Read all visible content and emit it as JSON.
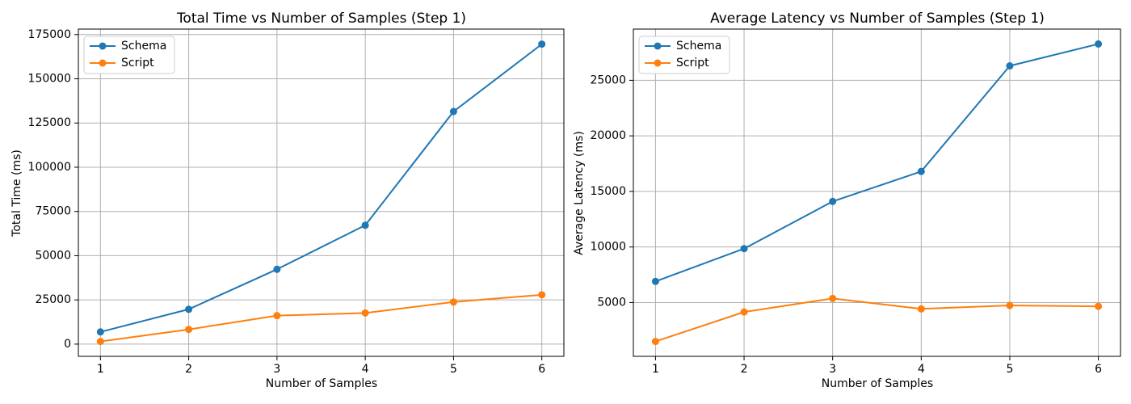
{
  "figure": {
    "background": "#ffffff"
  },
  "style": {
    "grid_color": "#b0b0b0",
    "spine_color": "#000000",
    "text_color": "#000000",
    "legend_border_color": "#cccccc",
    "legend_background": "#ffffff"
  },
  "chart_data": [
    {
      "type": "line",
      "title": "Total Time vs Number of Samples (Step 1)",
      "xlabel": "Number of Samples",
      "ylabel": "Total Time (ms)",
      "x": [
        1,
        2,
        3,
        4,
        5,
        6
      ],
      "xticks": [
        "1",
        "2",
        "3",
        "4",
        "5",
        "6"
      ],
      "yticks": [
        0,
        25000,
        50000,
        75000,
        100000,
        125000,
        150000,
        175000
      ],
      "ytick_labels": [
        "0",
        "25000",
        "50000",
        "75000",
        "100000",
        "125000",
        "150000",
        "175000"
      ],
      "xlim": [
        0.75,
        6.25
      ],
      "ylim": [
        -6900,
        178100
      ],
      "grid": true,
      "legend_position": "upper left",
      "series": [
        {
          "name": "Schema",
          "color": "#1f77b4",
          "values": [
            6900,
            19700,
            42300,
            67200,
            131500,
            169600
          ]
        },
        {
          "name": "Script",
          "color": "#ff7f0e",
          "values": [
            1500,
            8300,
            16100,
            17600,
            23800,
            27900
          ]
        }
      ]
    },
    {
      "type": "line",
      "title": "Average Latency vs Number of Samples (Step 1)",
      "xlabel": "Number of Samples",
      "ylabel": "Average Latency (ms)",
      "x": [
        1,
        2,
        3,
        4,
        5,
        6
      ],
      "xticks": [
        "1",
        "2",
        "3",
        "4",
        "5",
        "6"
      ],
      "yticks": [
        5000,
        10000,
        15000,
        20000,
        25000
      ],
      "ytick_labels": [
        "5000",
        "10000",
        "15000",
        "20000",
        "25000"
      ],
      "xlim": [
        0.75,
        6.25
      ],
      "ylim": [
        160,
        29610
      ],
      "grid": true,
      "legend_position": "upper left",
      "series": [
        {
          "name": "Schema",
          "color": "#1f77b4",
          "values": [
            6900,
            9850,
            14100,
            16800,
            26300,
            28270
          ]
        },
        {
          "name": "Script",
          "color": "#ff7f0e",
          "values": [
            1500,
            4150,
            5370,
            4430,
            4740,
            4660
          ]
        }
      ]
    }
  ]
}
